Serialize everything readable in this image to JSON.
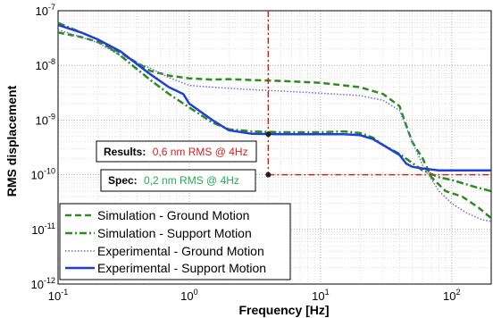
{
  "chart_data": {
    "type": "line",
    "xlabel": "Frequency [Hz]",
    "ylabel": "RMS displacement",
    "xscale": "log",
    "yscale": "log",
    "xlim": [
      0.1,
      200
    ],
    "ylim": [
      1e-12,
      1e-07
    ],
    "grid": true,
    "legend_position": "bottom-left",
    "x_ticks": [
      {
        "value": 0.1,
        "base": "10",
        "exp": "-1"
      },
      {
        "value": 1,
        "base": "10",
        "exp": "0"
      },
      {
        "value": 10,
        "base": "10",
        "exp": "1"
      },
      {
        "value": 100,
        "base": "10",
        "exp": "2"
      }
    ],
    "y_ticks": [
      {
        "value": 1e-12,
        "base": "10",
        "exp": "-12"
      },
      {
        "value": 1e-11,
        "base": "10",
        "exp": "-11"
      },
      {
        "value": 1e-10,
        "base": "10",
        "exp": "-10"
      },
      {
        "value": 1e-09,
        "base": "10",
        "exp": "-9"
      },
      {
        "value": 1e-08,
        "base": "10",
        "exp": "-8"
      },
      {
        "value": 1e-07,
        "base": "10",
        "exp": "-7"
      }
    ],
    "series": [
      {
        "name": "Simulation - Ground Motion",
        "color": "#2e8b22",
        "style": "dashed",
        "points": [
          [
            0.1,
            4e-08
          ],
          [
            0.15,
            3.3e-08
          ],
          [
            0.2,
            2.7e-08
          ],
          [
            0.3,
            1.7e-08
          ],
          [
            0.5,
            8e-09
          ],
          [
            0.7,
            6.5e-09
          ],
          [
            1,
            5.8e-09
          ],
          [
            1.5,
            5.5e-09
          ],
          [
            2,
            5.6e-09
          ],
          [
            3,
            5.4e-09
          ],
          [
            5,
            5.2e-09
          ],
          [
            10,
            4.8e-09
          ],
          [
            20,
            4e-09
          ],
          [
            30,
            3e-09
          ],
          [
            40,
            1.8e-09
          ],
          [
            45,
            8e-10
          ],
          [
            50,
            4e-10
          ],
          [
            60,
            2e-10
          ],
          [
            70,
            9e-11
          ],
          [
            90,
            5e-11
          ],
          [
            120,
            4e-11
          ],
          [
            160,
            2.5e-11
          ],
          [
            200,
            1.6e-11
          ]
        ]
      },
      {
        "name": "Simulation - Support Motion",
        "color": "#2e8b22",
        "style": "dashdot",
        "points": [
          [
            0.1,
            6e-08
          ],
          [
            0.2,
            3e-08
          ],
          [
            0.3,
            1.5e-08
          ],
          [
            0.5,
            5.5e-09
          ],
          [
            0.7,
            3e-09
          ],
          [
            1,
            1.7e-09
          ],
          [
            1.5,
            9e-10
          ],
          [
            2,
            6.8e-10
          ],
          [
            3,
            6.2e-10
          ],
          [
            5,
            6e-10
          ],
          [
            10,
            6e-10
          ],
          [
            15,
            6.2e-10
          ],
          [
            20,
            5.8e-10
          ],
          [
            25,
            4.8e-10
          ],
          [
            30,
            3.5e-10
          ],
          [
            40,
            2.4e-10
          ],
          [
            60,
            1.2e-10
          ],
          [
            80,
            9e-11
          ],
          [
            100,
            8e-11
          ],
          [
            150,
            6e-11
          ],
          [
            200,
            5e-11
          ]
        ]
      },
      {
        "name": "Experimental - Ground Motion",
        "color": "#6b70c8",
        "style": "dotted",
        "points": [
          [
            0.1,
            4.5e-08
          ],
          [
            0.15,
            3.3e-08
          ],
          [
            0.2,
            2.6e-08
          ],
          [
            0.3,
            1.5e-08
          ],
          [
            0.5,
            9e-09
          ],
          [
            0.7,
            6e-09
          ],
          [
            1,
            4.3e-09
          ],
          [
            2,
            3.8e-09
          ],
          [
            3,
            3.6e-09
          ],
          [
            5,
            3.4e-09
          ],
          [
            10,
            3.1e-09
          ],
          [
            20,
            2.8e-09
          ],
          [
            30,
            2.3e-09
          ],
          [
            40,
            1.5e-09
          ],
          [
            50,
            4e-10
          ],
          [
            60,
            1.5e-10
          ],
          [
            80,
            5e-11
          ],
          [
            100,
            3e-11
          ],
          [
            130,
            2e-11
          ],
          [
            170,
            1.5e-11
          ],
          [
            200,
            1.4e-11
          ]
        ]
      },
      {
        "name": "Experimental - Support Motion",
        "color": "#1f3fd6",
        "style": "solid",
        "points": [
          [
            0.1,
            5.5e-08
          ],
          [
            0.15,
            4e-08
          ],
          [
            0.2,
            3e-08
          ],
          [
            0.3,
            1.8e-08
          ],
          [
            0.5,
            7e-09
          ],
          [
            0.7,
            4e-09
          ],
          [
            0.9,
            3e-09
          ],
          [
            1,
            2e-09
          ],
          [
            1.5,
            1e-09
          ],
          [
            2,
            6.5e-10
          ],
          [
            3,
            5.6e-10
          ],
          [
            5,
            5.5e-10
          ],
          [
            10,
            5.5e-10
          ],
          [
            15,
            5.5e-10
          ],
          [
            20,
            5.3e-10
          ],
          [
            25,
            4.5e-10
          ],
          [
            30,
            3.5e-10
          ],
          [
            40,
            2.3e-10
          ],
          [
            45,
            1.6e-10
          ],
          [
            50,
            1.4e-10
          ],
          [
            60,
            1.3e-10
          ],
          [
            80,
            1.2e-10
          ],
          [
            120,
            1.2e-10
          ],
          [
            200,
            1.2e-10
          ]
        ]
      }
    ],
    "markers": {
      "color": "#cc2222",
      "vertical_line_x": 4,
      "horizontal_line_y": 1e-10,
      "points": [
        [
          4,
          5.5e-10
        ],
        [
          4,
          1e-10
        ]
      ]
    },
    "annotations": [
      {
        "label": "Results:",
        "value": "0,6 nm RMS @ 4Hz",
        "value_color": "#cc2222"
      },
      {
        "label": "Spec:",
        "value": "0,2 nm RMS @ 4Hz",
        "value_color": "#22aa55"
      }
    ]
  }
}
